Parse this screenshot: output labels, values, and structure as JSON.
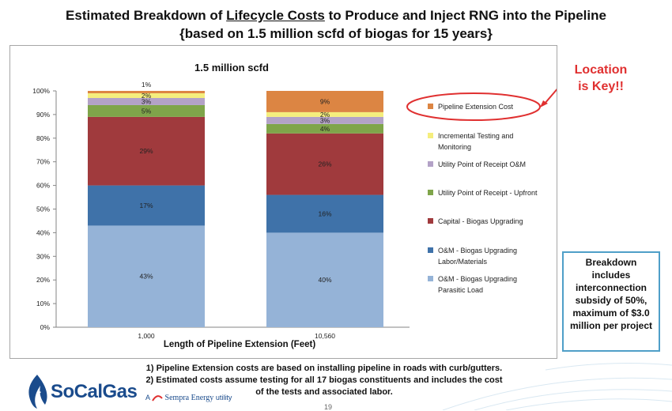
{
  "title": {
    "before": "Estimated Breakdown of ",
    "underlined": "Lifecycle Costs",
    "after": " to Produce and Inject RNG into the Pipeline",
    "line2": "{based on 1.5 million scfd of biogas for 15 years}"
  },
  "callout": {
    "line1": "Location",
    "line2": "is Key!!"
  },
  "note": "Breakdown includes interconnection subsidy of 50%, maximum of $3.0 million per project",
  "footnotes": {
    "line1": "1)  Pipeline Extension costs are based on installing pipeline in roads with curb/gutters.",
    "line2": "2)  Estimated costs assume testing for all 17 biogas constituents and includes the cost",
    "line3": "of the tests and associated labor."
  },
  "logo": {
    "brand": "SoCalGas",
    "prefix": "A",
    "parent": "Sempra Energy",
    "suffix": "utility"
  },
  "page_number": "19",
  "colors": {
    "callout_red": "#e03030",
    "note_border": "#4f9fc8",
    "brand_blue": "#1a4b8c"
  },
  "chart_data": {
    "type": "bar",
    "stacked": true,
    "title": "1.5 million scfd",
    "xlabel": "Length of Pipeline Extension (Feet)",
    "ylabel": "",
    "ylim": [
      0,
      100
    ],
    "yticks": [
      "0%",
      "10%",
      "20%",
      "30%",
      "40%",
      "50%",
      "60%",
      "70%",
      "80%",
      "90%",
      "100%"
    ],
    "categories": [
      "1,000",
      "10,560"
    ],
    "legend_position": "right",
    "highlighted_legend_entry": "Pipeline Extension Cost",
    "series": [
      {
        "name": "O&M - Biogas Upgrading Parasitic Load",
        "legend": [
          "O&M - Biogas Upgrading",
          "Parasitic Load"
        ],
        "color": "#95b3d7",
        "values": [
          43,
          40
        ],
        "labels": [
          "43%",
          "40%"
        ]
      },
      {
        "name": "O&M - Biogas Upgrading Labor/Materials",
        "legend": [
          "O&M - Biogas Upgrading",
          "Labor/Materials"
        ],
        "color": "#3f72a9",
        "values": [
          17,
          16
        ],
        "labels": [
          "17%",
          "16%"
        ]
      },
      {
        "name": "Capital - Biogas Upgrading",
        "legend": [
          "Capital - Biogas Upgrading"
        ],
        "color": "#a03a3d",
        "values": [
          29,
          26
        ],
        "labels": [
          "29%",
          "26%"
        ]
      },
      {
        "name": "Utility Point of Receipt - Upfront",
        "legend": [
          "Utility Point of Receipt - Upfront"
        ],
        "color": "#7fa54a",
        "values": [
          5,
          4
        ],
        "labels": [
          "5%",
          "4%"
        ]
      },
      {
        "name": "Utility Point of Receipt O&M",
        "legend": [
          "Utility Point of Receipt O&M"
        ],
        "color": "#b3a2c7",
        "values": [
          3,
          3
        ],
        "labels": [
          "3%",
          "3%"
        ]
      },
      {
        "name": "Incremental Testing and Monitoring",
        "legend": [
          "Incremental Testing and",
          "Monitoring"
        ],
        "color": "#f5ee7d",
        "values": [
          2,
          2
        ],
        "labels": [
          "2%",
          "2%"
        ]
      },
      {
        "name": "Pipeline Extension Cost",
        "legend": [
          "Pipeline Extension Cost"
        ],
        "color": "#dc8543",
        "values": [
          1,
          9
        ],
        "labels": [
          "1%",
          "9%"
        ]
      }
    ]
  }
}
